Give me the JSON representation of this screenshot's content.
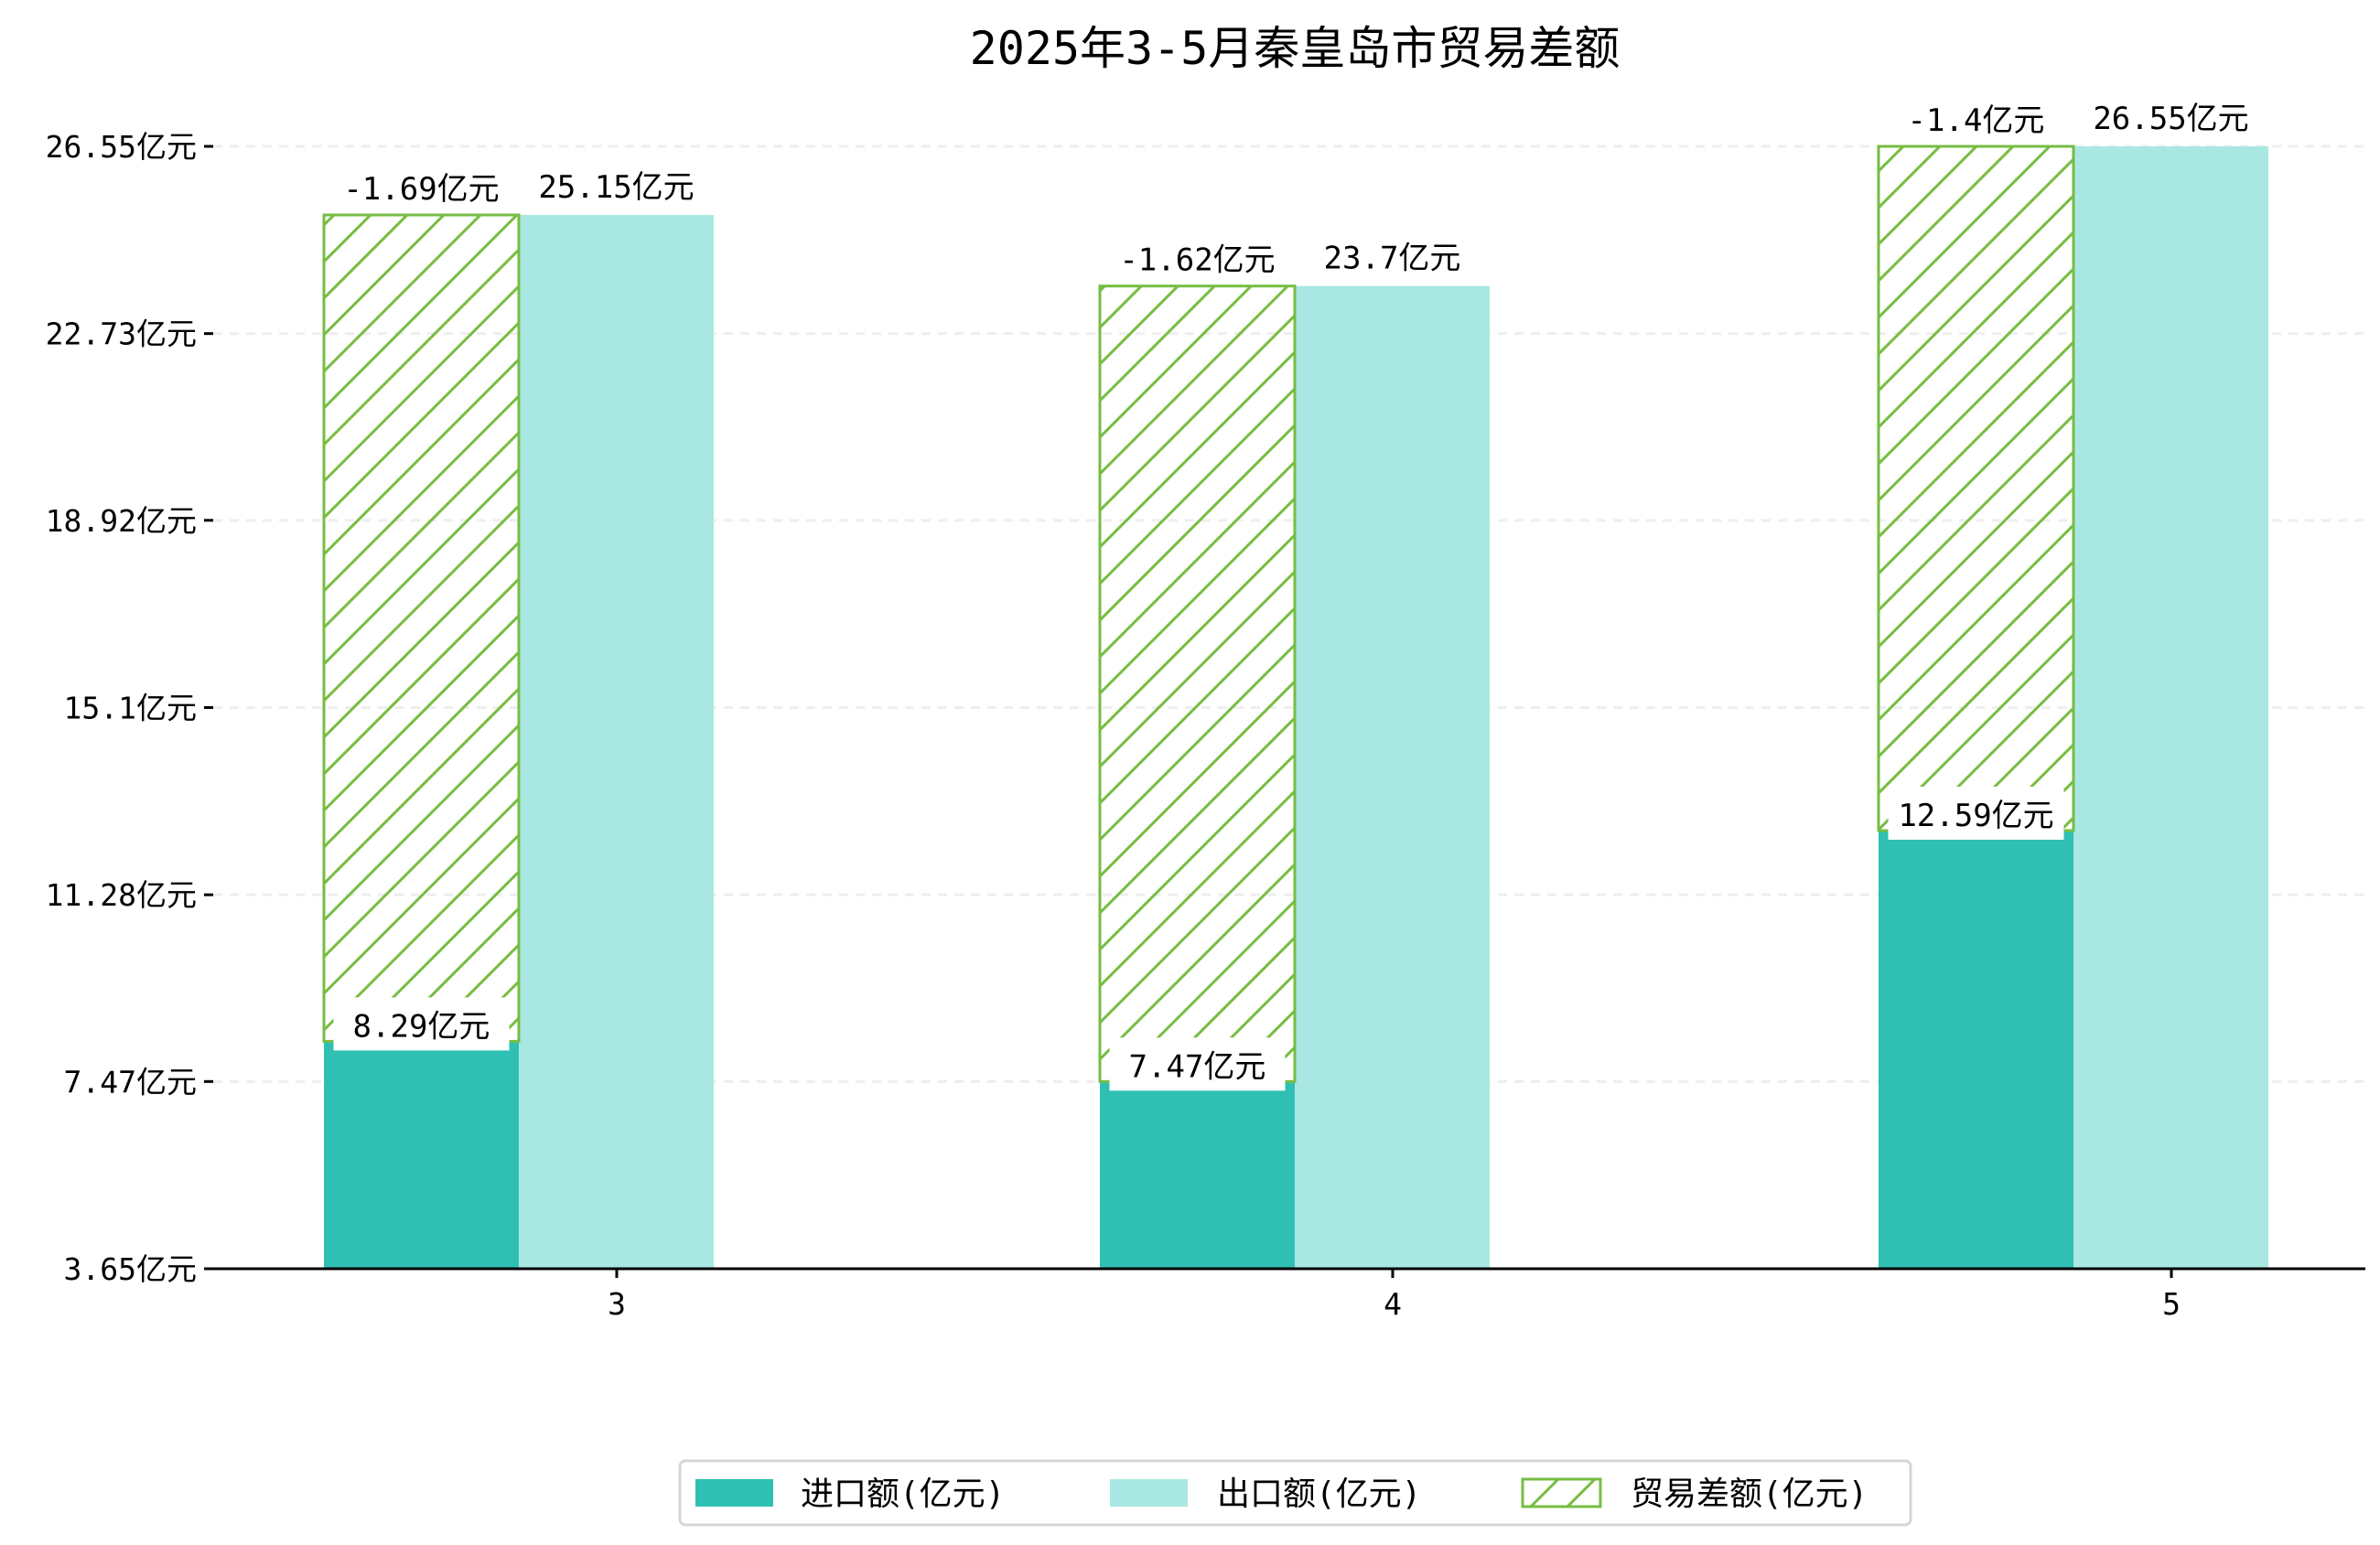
{
  "chart_data": {
    "type": "bar",
    "title": "2025年3-5月秦皇岛市贸易差额",
    "categories": [
      "3",
      "4",
      "5"
    ],
    "series": [
      {
        "name": "进口额(亿元)",
        "values": [
          8.29,
          7.47,
          12.59
        ],
        "labels": [
          "8.29亿元",
          "7.47亿元",
          "12.59亿元"
        ],
        "color": "#2fc0b3"
      },
      {
        "name": "出口额(亿元)",
        "values": [
          25.15,
          23.7,
          26.55
        ],
        "labels": [
          "25.15亿元",
          "23.7亿元",
          "26.55亿元"
        ],
        "color": "#a9e8e2"
      },
      {
        "name": "贸易差额(亿元)",
        "values": [
          -1.69,
          -1.62,
          -1.4
        ],
        "labels": [
          "-1.69亿元",
          "-1.62亿元",
          "-1.4亿元"
        ],
        "color": "#76bd42"
      }
    ],
    "yticks": [
      "3.65亿元",
      "7.47亿元",
      "11.28亿元",
      "15.1亿元",
      "18.92亿元",
      "22.73亿元",
      "26.55亿元"
    ],
    "ytick_values": [
      3.65,
      7.47,
      11.28,
      15.1,
      18.92,
      22.73,
      26.55
    ],
    "ylim": [
      3.65,
      26.55
    ],
    "xlabel": "",
    "ylabel": "",
    "grid": "horizontal dashed",
    "legend_position": "bottom-center"
  }
}
